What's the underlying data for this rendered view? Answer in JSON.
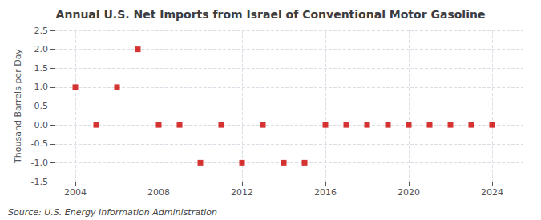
{
  "chart_data": {
    "type": "scatter",
    "title": "Annual U.S. Net Imports from Israel of Conventional Motor Gasoline",
    "ylabel": "Thousand Barrels per Day",
    "annotations": [
      "Source: U.S. Energy Information Administration"
    ],
    "x": [
      2004,
      2005,
      2006,
      2007,
      2008,
      2009,
      2010,
      2011,
      2012,
      2013,
      2014,
      2015,
      2016,
      2017,
      2018,
      2019,
      2020,
      2021,
      2022,
      2023,
      2024
    ],
    "values": [
      1.0,
      0.0,
      1.0,
      2.0,
      0.0,
      0.0,
      -1.0,
      0.0,
      -1.0,
      0.0,
      -1.0,
      -1.0,
      0.0,
      0.0,
      0.0,
      0.0,
      0.0,
      0.0,
      0.0,
      0.0,
      0.0
    ],
    "color": "#cc0000",
    "marker": "square",
    "xlim": [
      2003.0,
      2025.5
    ],
    "xticks": [
      2004,
      2008,
      2012,
      2016,
      2020,
      2024
    ],
    "ylim": [
      -1.5,
      2.5
    ],
    "yticks": [
      -1.5,
      {
        "value": -1.0,
        "label": "-1.0"
      },
      -0.5,
      {
        "value": 0.0,
        "label": "0.0"
      },
      0.5,
      {
        "value": 1.0,
        "label": "1.0"
      },
      1.5,
      {
        "value": 2.0,
        "label": "2.0"
      },
      2.5
    ],
    "grid": true
  }
}
